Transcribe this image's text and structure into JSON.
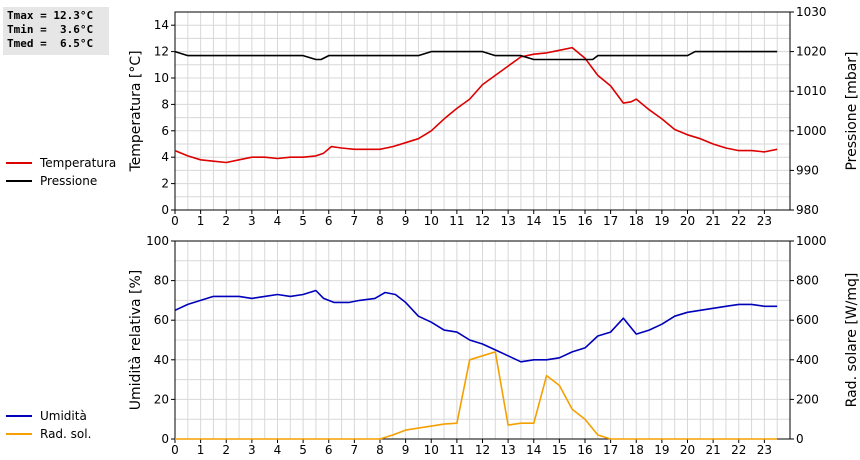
{
  "stats": {
    "tmax": "Tmax = 12.3°C",
    "tmin": "Tmin =  3.6°C",
    "tmed": "Tmed =  6.5°C"
  },
  "colors": {
    "temperature": "#dd0000",
    "pressure": "#000000",
    "humidity": "#0000bb",
    "radiation": "#f5a000",
    "grid": "#d8d8d8"
  },
  "chart_data": [
    {
      "type": "line",
      "ylabel": "Temperatura [°C]",
      "y2label": "Pressione [mbar]",
      "xlim": [
        0,
        24
      ],
      "x_ticks": [
        "0",
        "1",
        "2",
        "3",
        "4",
        "5",
        "6",
        "7",
        "8",
        "9",
        "10",
        "11",
        "12",
        "13",
        "14",
        "15",
        "16",
        "17",
        "18",
        "19",
        "20",
        "21",
        "22",
        "23"
      ],
      "ylim": [
        0,
        15
      ],
      "y_ticks": [
        0,
        2,
        4,
        6,
        8,
        10,
        12,
        14
      ],
      "y2lim": [
        980,
        1030
      ],
      "y2_ticks": [
        980,
        990,
        1000,
        1010,
        1020,
        1030
      ],
      "legend": [
        "Temperatura",
        "Pressione"
      ],
      "series": [
        {
          "name": "Temperatura",
          "axis": "left",
          "color": "#dd0000",
          "x": [
            0,
            0.5,
            1,
            1.5,
            2,
            2.5,
            3,
            3.5,
            4,
            4.5,
            5,
            5.5,
            5.8,
            6.1,
            6.5,
            7,
            7.5,
            8,
            8.5,
            9,
            9.5,
            10,
            10.5,
            11,
            11.5,
            12,
            12.5,
            13,
            13.5,
            14,
            14.5,
            15,
            15.5,
            16,
            16.5,
            17,
            17.5,
            17.8,
            18,
            18.5,
            19,
            19.5,
            20,
            20.5,
            21,
            21.5,
            22,
            22.5,
            23,
            23.5
          ],
          "y": [
            4.5,
            4.1,
            3.8,
            3.7,
            3.6,
            3.8,
            4.0,
            4.0,
            3.9,
            4.0,
            4.0,
            4.1,
            4.3,
            4.8,
            4.7,
            4.6,
            4.6,
            4.6,
            4.8,
            5.1,
            5.4,
            6.0,
            6.9,
            7.7,
            8.4,
            9.5,
            10.2,
            10.9,
            11.6,
            11.8,
            11.9,
            12.1,
            12.3,
            11.5,
            10.2,
            9.4,
            8.1,
            8.2,
            8.4,
            7.6,
            6.9,
            6.1,
            5.7,
            5.4,
            5.0,
            4.7,
            4.5,
            4.5,
            4.4,
            4.6
          ]
        },
        {
          "name": "Pressione",
          "axis": "right",
          "color": "#000000",
          "x": [
            0,
            0.5,
            1,
            2,
            3,
            4,
            5,
            5.5,
            5.7,
            6,
            6.2,
            7,
            8,
            9,
            9.5,
            10,
            11,
            12,
            12.5,
            13,
            13.5,
            14,
            14.5,
            15,
            16,
            16.3,
            16.5,
            17,
            18,
            19,
            20,
            20.3,
            20.5,
            21,
            22,
            23,
            23.5
          ],
          "y": [
            1020,
            1019,
            1019,
            1019,
            1019,
            1019,
            1019,
            1018,
            1018,
            1019,
            1019,
            1019,
            1019,
            1019,
            1019,
            1020,
            1020,
            1020,
            1019,
            1019,
            1019,
            1018,
            1018,
            1018,
            1018,
            1018,
            1019,
            1019,
            1019,
            1019,
            1019,
            1020,
            1020,
            1020,
            1020,
            1020,
            1020
          ]
        }
      ]
    },
    {
      "type": "line",
      "ylabel": "Umidità relativa [%]",
      "y2label": "Rad. solare [W/mq]",
      "xlim": [
        0,
        24
      ],
      "x_ticks": [
        "0",
        "1",
        "2",
        "3",
        "4",
        "5",
        "6",
        "7",
        "8",
        "9",
        "10",
        "11",
        "12",
        "13",
        "14",
        "15",
        "16",
        "17",
        "18",
        "19",
        "20",
        "21",
        "22",
        "23"
      ],
      "ylim": [
        0,
        100
      ],
      "y_ticks": [
        0,
        20,
        40,
        60,
        80,
        100
      ],
      "y2lim": [
        0,
        1000
      ],
      "y2_ticks": [
        0,
        200,
        400,
        600,
        800,
        1000
      ],
      "legend": [
        "Umidità",
        "Rad. sol."
      ],
      "series": [
        {
          "name": "Umidità",
          "axis": "left",
          "color": "#0000bb",
          "x": [
            0,
            0.5,
            1,
            1.5,
            2,
            2.5,
            3,
            3.5,
            4,
            4.5,
            5,
            5.5,
            5.8,
            6.2,
            6.8,
            7.2,
            7.8,
            8.2,
            8.6,
            9,
            9.5,
            10,
            10.5,
            11,
            11.5,
            12,
            12.5,
            13,
            13.5,
            14,
            14.5,
            15,
            15.5,
            16,
            16.5,
            17,
            17.5,
            18,
            18.5,
            19,
            19.5,
            20,
            20.5,
            21,
            21.5,
            22,
            22.5,
            23,
            23.5
          ],
          "y": [
            65,
            68,
            70,
            72,
            72,
            72,
            71,
            72,
            73,
            72,
            73,
            75,
            71,
            69,
            69,
            70,
            71,
            74,
            73,
            69,
            62,
            59,
            55,
            54,
            50,
            48,
            45,
            42,
            39,
            40,
            40,
            41,
            44,
            46,
            52,
            54,
            61,
            53,
            55,
            58,
            62,
            64,
            65,
            66,
            67,
            68,
            68,
            67,
            67
          ]
        },
        {
          "name": "Rad. sol.",
          "axis": "right",
          "color": "#f5a000",
          "x": [
            0,
            8,
            8.5,
            9,
            9.5,
            10,
            10.5,
            11,
            11.5,
            12,
            12.5,
            13,
            13.5,
            14,
            14.5,
            15,
            15.5,
            16,
            16.5,
            17,
            18,
            19,
            20,
            21,
            22,
            23,
            23.5
          ],
          "y": [
            0,
            0,
            20,
            45,
            55,
            65,
            75,
            80,
            400,
            420,
            440,
            70,
            80,
            80,
            320,
            270,
            150,
            100,
            20,
            0,
            0,
            0,
            0,
            0,
            0,
            0,
            0
          ]
        }
      ]
    }
  ]
}
